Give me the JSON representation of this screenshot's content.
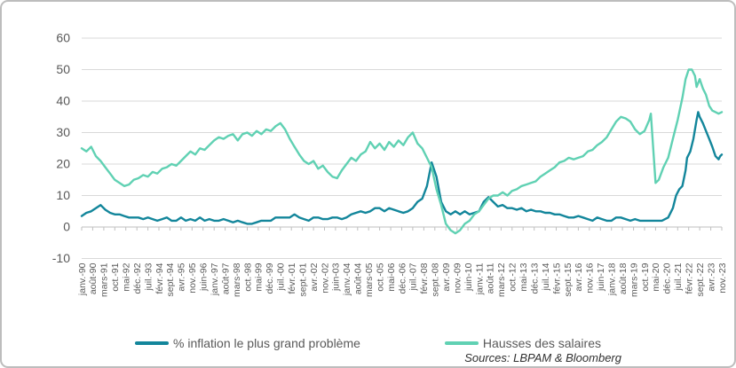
{
  "chart_data": {
    "type": "line",
    "title": "",
    "source_note": "Sources: LBPAM & Bloomberg",
    "grid": true,
    "legend_position": "bottom",
    "ylim": [
      -10,
      60
    ],
    "y_ticks": [
      -10,
      0,
      10,
      20,
      30,
      40,
      50,
      60
    ],
    "x_range_months": [
      0,
      406
    ],
    "x_tick_every_months": 7,
    "x_tick_labels": [
      "janv.-90",
      "août-90",
      "mars-91",
      "oct.-91",
      "mai-92",
      "déc.-92",
      "juil.-93",
      "févr.-94",
      "sept.-94",
      "avr.-95",
      "nov.-95",
      "juin-96",
      "janv.-97",
      "août-97",
      "mars-98",
      "oct.-98",
      "mai-99",
      "déc.-99",
      "juil.-00",
      "févr.-01",
      "sept.-01",
      "avr.-02",
      "nov.-02",
      "juin-03",
      "janv.-04",
      "août-04",
      "mars-05",
      "oct.-05",
      "mai-06",
      "déc.-06",
      "juil.-07",
      "févr.-08",
      "sept.-08",
      "avr.-09",
      "nov.-09",
      "juin-10",
      "janv.-11",
      "août-11",
      "mars-12",
      "oct.-12",
      "mai-13",
      "déc.-13",
      "juil.-14",
      "févr.-15",
      "sept.-15",
      "avr.-16",
      "nov.-16",
      "juin-17",
      "janv.-18",
      "août-18",
      "mars-19",
      "oct.-19",
      "mai-20",
      "déc.-20",
      "juil.-21",
      "févr.-22",
      "sept.-22",
      "avr.-23",
      "nov.-23"
    ],
    "colors": {
      "grid": "#d9d9d9",
      "axis": "#bfbfbf",
      "tick_text": "#595959"
    },
    "series": [
      {
        "id": "inflation",
        "name": "% inflation le plus grand problème",
        "color": "#13869b",
        "points": [
          [
            0,
            3.5
          ],
          [
            3,
            4.5
          ],
          [
            6,
            5
          ],
          [
            9,
            6
          ],
          [
            12,
            7
          ],
          [
            15,
            5.5
          ],
          [
            18,
            4.5
          ],
          [
            21,
            4
          ],
          [
            24,
            4
          ],
          [
            27,
            3.5
          ],
          [
            30,
            3
          ],
          [
            33,
            3
          ],
          [
            36,
            3
          ],
          [
            39,
            2.5
          ],
          [
            42,
            3
          ],
          [
            45,
            2.5
          ],
          [
            48,
            2
          ],
          [
            51,
            2.5
          ],
          [
            54,
            3
          ],
          [
            57,
            2
          ],
          [
            60,
            2
          ],
          [
            63,
            3
          ],
          [
            66,
            2
          ],
          [
            69,
            2.5
          ],
          [
            72,
            2
          ],
          [
            75,
            3
          ],
          [
            78,
            2
          ],
          [
            81,
            2.5
          ],
          [
            84,
            2
          ],
          [
            87,
            2
          ],
          [
            90,
            2.5
          ],
          [
            93,
            2
          ],
          [
            96,
            1.5
          ],
          [
            99,
            2
          ],
          [
            102,
            1.5
          ],
          [
            105,
            1
          ],
          [
            108,
            1
          ],
          [
            111,
            1.5
          ],
          [
            114,
            2
          ],
          [
            117,
            2
          ],
          [
            120,
            2
          ],
          [
            123,
            3
          ],
          [
            126,
            3
          ],
          [
            129,
            3
          ],
          [
            132,
            3
          ],
          [
            135,
            4
          ],
          [
            138,
            3
          ],
          [
            141,
            2.5
          ],
          [
            144,
            2
          ],
          [
            147,
            3
          ],
          [
            150,
            3
          ],
          [
            153,
            2.5
          ],
          [
            156,
            2.5
          ],
          [
            159,
            3
          ],
          [
            162,
            3
          ],
          [
            165,
            2.5
          ],
          [
            168,
            3
          ],
          [
            171,
            4
          ],
          [
            174,
            4.5
          ],
          [
            177,
            5
          ],
          [
            180,
            4.5
          ],
          [
            183,
            5
          ],
          [
            186,
            6
          ],
          [
            189,
            6
          ],
          [
            192,
            5
          ],
          [
            195,
            6
          ],
          [
            198,
            5.5
          ],
          [
            201,
            5
          ],
          [
            204,
            4.5
          ],
          [
            207,
            5
          ],
          [
            210,
            6
          ],
          [
            213,
            8
          ],
          [
            216,
            9
          ],
          [
            219,
            13
          ],
          [
            222,
            20.5
          ],
          [
            225,
            16
          ],
          [
            228,
            8
          ],
          [
            231,
            5
          ],
          [
            234,
            4
          ],
          [
            237,
            5
          ],
          [
            240,
            4
          ],
          [
            243,
            5
          ],
          [
            246,
            4
          ],
          [
            249,
            4.5
          ],
          [
            252,
            5
          ],
          [
            255,
            8
          ],
          [
            258,
            9.5
          ],
          [
            261,
            8
          ],
          [
            264,
            6.5
          ],
          [
            267,
            7
          ],
          [
            270,
            6
          ],
          [
            273,
            6
          ],
          [
            276,
            5.5
          ],
          [
            279,
            6
          ],
          [
            282,
            5
          ],
          [
            285,
            5.5
          ],
          [
            288,
            5
          ],
          [
            291,
            5
          ],
          [
            294,
            4.5
          ],
          [
            297,
            4.5
          ],
          [
            300,
            4
          ],
          [
            303,
            4
          ],
          [
            306,
            3.5
          ],
          [
            309,
            3
          ],
          [
            312,
            3
          ],
          [
            315,
            3.5
          ],
          [
            318,
            3
          ],
          [
            321,
            2.5
          ],
          [
            324,
            2
          ],
          [
            327,
            3
          ],
          [
            330,
            2.5
          ],
          [
            333,
            2
          ],
          [
            336,
            2
          ],
          [
            339,
            3
          ],
          [
            342,
            3
          ],
          [
            345,
            2.5
          ],
          [
            348,
            2
          ],
          [
            351,
            2.5
          ],
          [
            354,
            2
          ],
          [
            357,
            2
          ],
          [
            360,
            2
          ],
          [
            364,
            2
          ],
          [
            368,
            2
          ],
          [
            372,
            3
          ],
          [
            375,
            6
          ],
          [
            377,
            10
          ],
          [
            379,
            12
          ],
          [
            381,
            13
          ],
          [
            383,
            18
          ],
          [
            384,
            22
          ],
          [
            386,
            24
          ],
          [
            388,
            28
          ],
          [
            390,
            34
          ],
          [
            391,
            36.5
          ],
          [
            392,
            35
          ],
          [
            394,
            33
          ],
          [
            396,
            30.5
          ],
          [
            398,
            28
          ],
          [
            400,
            25.5
          ],
          [
            402,
            22.5
          ],
          [
            404,
            21.5
          ],
          [
            405,
            22.5
          ],
          [
            406,
            23
          ]
        ]
      },
      {
        "id": "salaires",
        "name": "Hausses des salaires",
        "color": "#60d1b3",
        "points": [
          [
            0,
            25
          ],
          [
            3,
            24
          ],
          [
            6,
            25.5
          ],
          [
            9,
            22.5
          ],
          [
            12,
            21
          ],
          [
            15,
            19
          ],
          [
            18,
            17
          ],
          [
            21,
            15
          ],
          [
            24,
            14
          ],
          [
            27,
            13
          ],
          [
            30,
            13.5
          ],
          [
            33,
            15
          ],
          [
            36,
            15.5
          ],
          [
            39,
            16.5
          ],
          [
            42,
            16
          ],
          [
            45,
            17.5
          ],
          [
            48,
            17
          ],
          [
            51,
            18.5
          ],
          [
            54,
            19
          ],
          [
            57,
            20
          ],
          [
            60,
            19.5
          ],
          [
            63,
            21
          ],
          [
            66,
            22.5
          ],
          [
            69,
            24
          ],
          [
            72,
            23
          ],
          [
            75,
            25
          ],
          [
            78,
            24.5
          ],
          [
            81,
            26
          ],
          [
            84,
            27.5
          ],
          [
            87,
            28.5
          ],
          [
            90,
            28
          ],
          [
            93,
            29
          ],
          [
            96,
            29.5
          ],
          [
            99,
            27.5
          ],
          [
            102,
            29.5
          ],
          [
            105,
            30
          ],
          [
            108,
            29
          ],
          [
            111,
            30.5
          ],
          [
            114,
            29.5
          ],
          [
            117,
            31
          ],
          [
            120,
            30.5
          ],
          [
            123,
            32
          ],
          [
            126,
            33
          ],
          [
            129,
            31
          ],
          [
            132,
            28
          ],
          [
            135,
            25.5
          ],
          [
            138,
            23
          ],
          [
            141,
            21
          ],
          [
            144,
            20
          ],
          [
            147,
            21
          ],
          [
            150,
            18.5
          ],
          [
            153,
            19.5
          ],
          [
            156,
            17.5
          ],
          [
            159,
            16
          ],
          [
            162,
            15.5
          ],
          [
            165,
            18
          ],
          [
            168,
            20
          ],
          [
            171,
            22
          ],
          [
            174,
            21
          ],
          [
            177,
            23
          ],
          [
            180,
            24
          ],
          [
            183,
            27
          ],
          [
            186,
            25
          ],
          [
            189,
            26.5
          ],
          [
            192,
            24.5
          ],
          [
            195,
            27
          ],
          [
            198,
            25.5
          ],
          [
            201,
            27.5
          ],
          [
            204,
            26
          ],
          [
            207,
            28.5
          ],
          [
            210,
            30
          ],
          [
            213,
            26.5
          ],
          [
            216,
            25
          ],
          [
            219,
            22
          ],
          [
            222,
            19
          ],
          [
            225,
            12
          ],
          [
            228,
            7
          ],
          [
            231,
            1
          ],
          [
            234,
            -1
          ],
          [
            237,
            -2
          ],
          [
            240,
            -1
          ],
          [
            243,
            1
          ],
          [
            246,
            2
          ],
          [
            249,
            4
          ],
          [
            252,
            5
          ],
          [
            255,
            7
          ],
          [
            258,
            9
          ],
          [
            261,
            10
          ],
          [
            264,
            10
          ],
          [
            267,
            11
          ],
          [
            270,
            10
          ],
          [
            273,
            11.5
          ],
          [
            276,
            12
          ],
          [
            279,
            13
          ],
          [
            282,
            13.5
          ],
          [
            285,
            14
          ],
          [
            288,
            14.5
          ],
          [
            291,
            16
          ],
          [
            294,
            17
          ],
          [
            297,
            18
          ],
          [
            300,
            19
          ],
          [
            303,
            20.5
          ],
          [
            306,
            21
          ],
          [
            309,
            22
          ],
          [
            312,
            21.5
          ],
          [
            315,
            22
          ],
          [
            318,
            22.5
          ],
          [
            321,
            24
          ],
          [
            324,
            24.5
          ],
          [
            327,
            26
          ],
          [
            330,
            27
          ],
          [
            333,
            28.5
          ],
          [
            336,
            31
          ],
          [
            339,
            33.5
          ],
          [
            342,
            35
          ],
          [
            345,
            34.5
          ],
          [
            348,
            33.5
          ],
          [
            351,
            31
          ],
          [
            354,
            29.5
          ],
          [
            357,
            30.5
          ],
          [
            360,
            34
          ],
          [
            361,
            36
          ],
          [
            364,
            14
          ],
          [
            366,
            15
          ],
          [
            369,
            19
          ],
          [
            372,
            22
          ],
          [
            375,
            28
          ],
          [
            378,
            34
          ],
          [
            381,
            41
          ],
          [
            383,
            47
          ],
          [
            385,
            50
          ],
          [
            387,
            50
          ],
          [
            389,
            48
          ],
          [
            390,
            44.5
          ],
          [
            392,
            47
          ],
          [
            394,
            44
          ],
          [
            396,
            42
          ],
          [
            398,
            38.5
          ],
          [
            400,
            37
          ],
          [
            402,
            36.5
          ],
          [
            404,
            36
          ],
          [
            406,
            36.5
          ]
        ]
      }
    ]
  }
}
